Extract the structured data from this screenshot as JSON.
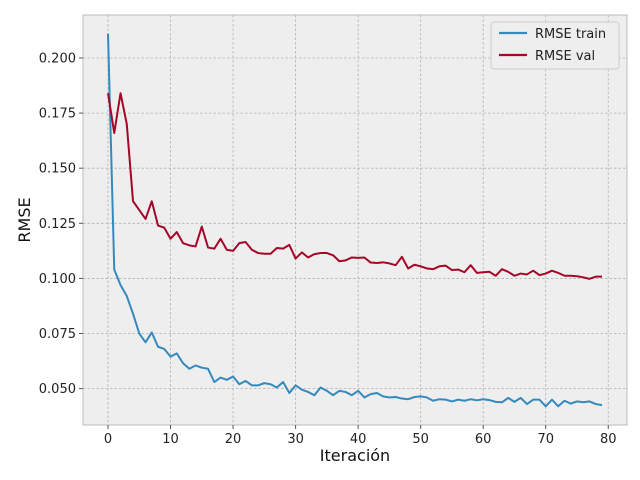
{
  "chart_data": {
    "type": "line",
    "title": "",
    "xlabel": "Iteración",
    "ylabel": "RMSE",
    "xlim": [
      -4,
      83
    ],
    "ylim": [
      0.0335,
      0.2195
    ],
    "x_ticks": [
      0,
      10,
      20,
      30,
      40,
      50,
      60,
      70,
      80
    ],
    "y_ticks": [
      0.05,
      0.075,
      0.1,
      0.125,
      0.15,
      0.175,
      0.2
    ],
    "x_tick_labels": [
      "0",
      "10",
      "20",
      "30",
      "40",
      "50",
      "60",
      "70",
      "80"
    ],
    "y_tick_labels": [
      "0.050",
      "0.075",
      "0.100",
      "0.125",
      "0.150",
      "0.175",
      "0.200"
    ],
    "grid": true,
    "legend_position": "top-right",
    "colors": {
      "background": "#eeeeee",
      "grid": "#b2b2b2",
      "train": "#348abd",
      "val": "#a60628"
    },
    "x": [
      0,
      1,
      2,
      3,
      4,
      5,
      6,
      7,
      8,
      9,
      10,
      11,
      12,
      13,
      14,
      15,
      16,
      17,
      18,
      19,
      20,
      21,
      22,
      23,
      24,
      25,
      26,
      27,
      28,
      29,
      30,
      31,
      32,
      33,
      34,
      35,
      36,
      37,
      38,
      39,
      40,
      41,
      42,
      43,
      44,
      45,
      46,
      47,
      48,
      49,
      50,
      51,
      52,
      53,
      54,
      55,
      56,
      57,
      58,
      59,
      60,
      61,
      62,
      63,
      64,
      65,
      66,
      67,
      68,
      69,
      70,
      71,
      72,
      73,
      74,
      75,
      76,
      77,
      78,
      79
    ],
    "series": [
      {
        "name": "RMSE train",
        "values": [
          0.211,
          0.104,
          0.097,
          0.092,
          0.084,
          0.075,
          0.071,
          0.0755,
          0.069,
          0.068,
          0.0645,
          0.066,
          0.0615,
          0.059,
          0.0605,
          0.0595,
          0.059,
          0.053,
          0.055,
          0.054,
          0.0555,
          0.052,
          0.0535,
          0.0515,
          0.0515,
          0.0525,
          0.052,
          0.0505,
          0.053,
          0.048,
          0.0515,
          0.0495,
          0.0485,
          0.047,
          0.0505,
          0.049,
          0.047,
          0.049,
          0.0485,
          0.047,
          0.049,
          0.046,
          0.0475,
          0.048,
          0.0465,
          0.046,
          0.0462,
          0.0455,
          0.0452,
          0.0462,
          0.0465,
          0.046,
          0.0445,
          0.0452,
          0.045,
          0.0442,
          0.045,
          0.0445,
          0.0452,
          0.0447,
          0.0452,
          0.0448,
          0.044,
          0.0438,
          0.0458,
          0.044,
          0.0458,
          0.043,
          0.045,
          0.045,
          0.042,
          0.045,
          0.042,
          0.0445,
          0.0432,
          0.0442,
          0.0438,
          0.0442,
          0.043,
          0.0425
        ]
      },
      {
        "name": "RMSE val",
        "values": [
          0.184,
          0.166,
          0.184,
          0.17,
          0.135,
          0.131,
          0.127,
          0.135,
          0.124,
          0.123,
          0.118,
          0.121,
          0.116,
          0.115,
          0.1145,
          0.1235,
          0.114,
          0.1135,
          0.118,
          0.113,
          0.1125,
          0.116,
          0.1165,
          0.113,
          0.1115,
          0.1112,
          0.1112,
          0.1138,
          0.1135,
          0.1152,
          0.109,
          0.1118,
          0.1095,
          0.111,
          0.1115,
          0.1115,
          0.1105,
          0.1078,
          0.1082,
          0.1095,
          0.1093,
          0.1095,
          0.1072,
          0.107,
          0.1073,
          0.1068,
          0.106,
          0.1098,
          0.1045,
          0.1062,
          0.1055,
          0.1045,
          0.1042,
          0.1055,
          0.1058,
          0.1038,
          0.104,
          0.1028,
          0.106,
          0.1025,
          0.1028,
          0.103,
          0.1012,
          0.1042,
          0.103,
          0.1012,
          0.1022,
          0.1018,
          0.1035,
          0.1015,
          0.1022,
          0.1035,
          0.1025,
          0.1012,
          0.1012,
          0.101,
          0.1005,
          0.0998,
          0.1008,
          0.1008
        ]
      }
    ]
  }
}
